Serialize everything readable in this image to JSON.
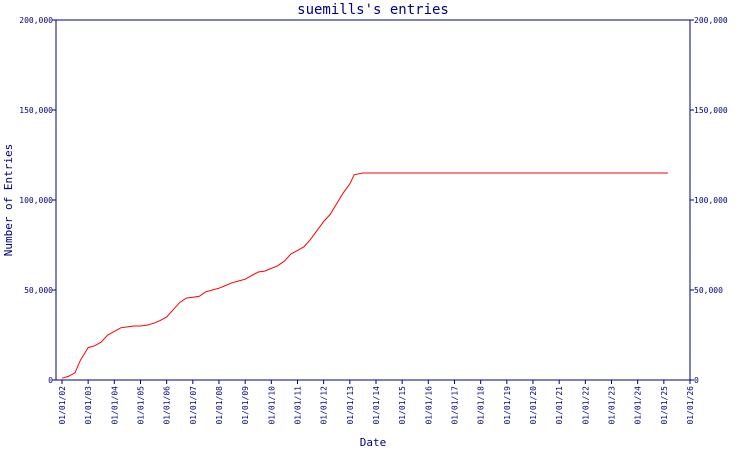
{
  "chart_data": {
    "type": "line",
    "title": "suemills's entries",
    "xlabel": "Date",
    "ylabel": "Number of Entries",
    "ylim": [
      0,
      200000
    ],
    "y_ticks": [
      0,
      50000,
      100000,
      150000,
      200000
    ],
    "y_tick_labels": [
      "0",
      "50,000",
      "100,000",
      "150,000",
      "200,000"
    ],
    "x_ticks": [
      "01/01/02",
      "01/01/03",
      "01/01/04",
      "01/01/05",
      "01/01/06",
      "01/01/07",
      "01/01/08",
      "01/01/09",
      "01/01/10",
      "01/01/11",
      "01/01/12",
      "01/01/13",
      "01/01/14",
      "01/01/15",
      "01/01/16",
      "01/01/17",
      "01/01/18",
      "01/01/19",
      "01/01/20",
      "01/01/21",
      "01/01/22",
      "01/01/23",
      "01/01/24",
      "01/01/25",
      "01/01/26"
    ],
    "grid": false,
    "secondary_y_axis": true,
    "series": [
      {
        "color": "#ff0000",
        "points": [
          [
            "2002-01-01",
            1000
          ],
          [
            "2002-04-01",
            2000
          ],
          [
            "2002-07-01",
            4000
          ],
          [
            "2002-09-15",
            11000
          ],
          [
            "2002-11-01",
            14000
          ],
          [
            "2003-01-01",
            18000
          ],
          [
            "2003-04-01",
            19000
          ],
          [
            "2003-07-01",
            21000
          ],
          [
            "2003-10-01",
            25000
          ],
          [
            "2004-01-01",
            27000
          ],
          [
            "2004-04-01",
            29000
          ],
          [
            "2004-07-01",
            29500
          ],
          [
            "2004-10-01",
            30000
          ],
          [
            "2005-01-01",
            30000
          ],
          [
            "2005-04-01",
            30500
          ],
          [
            "2005-07-01",
            31500
          ],
          [
            "2005-10-01",
            33000
          ],
          [
            "2006-01-01",
            35000
          ],
          [
            "2006-04-01",
            39000
          ],
          [
            "2006-07-01",
            43000
          ],
          [
            "2006-10-01",
            45500
          ],
          [
            "2007-01-01",
            46000
          ],
          [
            "2007-04-01",
            46500
          ],
          [
            "2007-07-01",
            49000
          ],
          [
            "2007-10-01",
            50000
          ],
          [
            "2008-01-01",
            51000
          ],
          [
            "2008-04-01",
            52500
          ],
          [
            "2008-07-01",
            54000
          ],
          [
            "2008-10-01",
            55000
          ],
          [
            "2009-01-01",
            56000
          ],
          [
            "2009-04-01",
            58000
          ],
          [
            "2009-07-01",
            60000
          ],
          [
            "2009-10-01",
            60500
          ],
          [
            "2010-01-01",
            62000
          ],
          [
            "2010-04-01",
            63500
          ],
          [
            "2010-07-01",
            66000
          ],
          [
            "2010-10-01",
            70000
          ],
          [
            "2011-01-01",
            72000
          ],
          [
            "2011-04-01",
            74000
          ],
          [
            "2011-07-01",
            78000
          ],
          [
            "2011-10-01",
            83000
          ],
          [
            "2012-01-01",
            88000
          ],
          [
            "2012-04-01",
            92000
          ],
          [
            "2012-07-01",
            98000
          ],
          [
            "2012-10-01",
            104000
          ],
          [
            "2013-01-01",
            109000
          ],
          [
            "2013-03-01",
            114000
          ],
          [
            "2013-07-01",
            115000
          ],
          [
            "2014-01-01",
            115000
          ],
          [
            "2016-01-01",
            115000
          ],
          [
            "2018-01-01",
            115000
          ],
          [
            "2020-01-01",
            115000
          ],
          [
            "2022-01-01",
            115000
          ],
          [
            "2024-01-01",
            115000
          ],
          [
            "2025-03-01",
            115000
          ]
        ]
      }
    ]
  }
}
